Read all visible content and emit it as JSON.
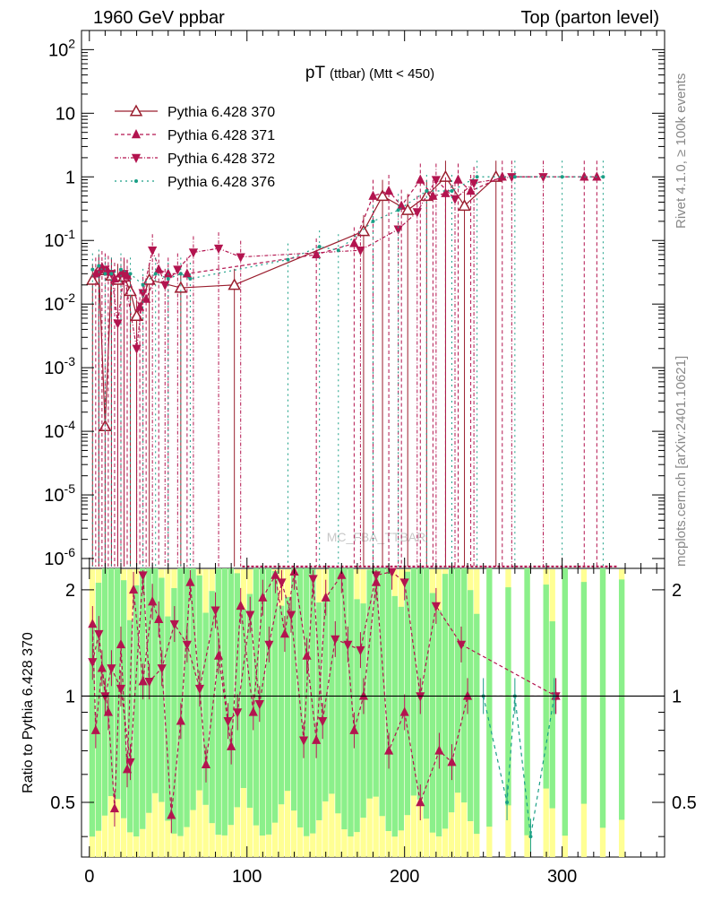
{
  "header": {
    "left_title": "1960 GeV ppbar",
    "right_title": "Top (parton level)"
  },
  "side_labels": {
    "rivet": "Rivet 4.1.0, ≥ 100k events",
    "mcplots": "mcplots.cern.ch [arXiv:2401.10621]"
  },
  "watermark": "MC_FBA_TTBAR",
  "chart_data": [
    {
      "type": "line",
      "panel": "main",
      "title_main": "pT",
      "title_sub": "(ttbar) (Mtt < 450)",
      "yscale": "log",
      "ylim": [
        7e-07,
        200
      ],
      "xlim": [
        -5,
        365
      ],
      "y_ticks": [
        "10^-6",
        "10^-5",
        "10^-4",
        "10^-3",
        "10^-2",
        "10^-1",
        "1",
        "10",
        "10^2"
      ],
      "legend": [
        "Pythia 6.428 370",
        "Pythia 6.428 371",
        "Pythia 6.428 372",
        "Pythia 6.428 376"
      ],
      "series": [
        {
          "name": "Pythia 6.428 370",
          "color": "#9a1e2e",
          "marker": "open-triangle-up",
          "x": [
            2,
            6,
            10,
            14,
            18,
            22,
            26,
            30,
            38,
            58,
            92,
            174,
            186,
            202,
            214,
            226,
            238,
            258
          ],
          "y": [
            0.024,
            0.034,
            0.00012,
            0.028,
            0.024,
            0.027,
            0.016,
            0.0065,
            0.024,
            0.018,
            0.02,
            0.14,
            0.5,
            0.3,
            0.5,
            1.0,
            0.35,
            1.0
          ]
        },
        {
          "name": "Pythia 6.428 371",
          "color": "#b3144f",
          "marker": "filled-triangle-up",
          "x": [
            4,
            8,
            12,
            16,
            20,
            24,
            32,
            36,
            44,
            50,
            62,
            144,
            168,
            180,
            190,
            198,
            210,
            218,
            226,
            234,
            242,
            262,
            314,
            322
          ],
          "y": [
            0.03,
            0.038,
            0.032,
            0.025,
            0.03,
            0.028,
            0.009,
            0.012,
            0.035,
            0.03,
            0.03,
            0.06,
            0.09,
            0.5,
            0.6,
            0.35,
            0.9,
            0.5,
            0.55,
            0.9,
            0.6,
            1.0,
            1.0,
            1.0
          ]
        },
        {
          "name": "Pythia 6.428 372",
          "color": "#b3144f",
          "marker": "filled-triangle-down",
          "x": [
            6,
            10,
            14,
            18,
            22,
            30,
            34,
            40,
            48,
            56,
            66,
            82,
            96,
            172,
            196,
            208,
            220,
            232,
            244,
            268,
            288
          ],
          "y": [
            0.03,
            0.035,
            0.03,
            0.005,
            0.03,
            0.002,
            0.015,
            0.07,
            0.02,
            0.035,
            0.065,
            0.075,
            0.055,
            0.07,
            0.15,
            0.28,
            0.9,
            0.45,
            0.8,
            1.0,
            1.0
          ]
        },
        {
          "name": "Pythia 6.428 376",
          "color": "#1a9f86",
          "marker": "dot",
          "x": [
            2,
            6,
            10,
            14,
            20,
            26,
            34,
            42,
            50,
            58,
            64,
            126,
            146,
            158,
            180,
            196,
            214,
            230,
            246,
            270,
            300,
            326
          ],
          "y": [
            0.035,
            0.04,
            0.03,
            0.03,
            0.035,
            0.03,
            0.02,
            0.03,
            0.025,
            0.03,
            0.025,
            0.05,
            0.08,
            0.07,
            0.2,
            0.3,
            0.6,
            0.6,
            1.0,
            1.0,
            1.0,
            1.0
          ]
        }
      ]
    },
    {
      "type": "line",
      "panel": "ratio",
      "ylabel": "Ratio to Pythia 6.428 370",
      "ylim": [
        0.35,
        2.3
      ],
      "xlim": [
        -5,
        365
      ],
      "y_ticks": [
        "0.5",
        "1",
        "2"
      ],
      "x_ticks": [
        "0",
        "100",
        "200",
        "300"
      ],
      "series": [
        {
          "name": "Pythia 6.428 371 / 370",
          "color": "#b3144f",
          "marker": "filled-triangle-up",
          "x": [
            2,
            4,
            8,
            12,
            16,
            20,
            24,
            28,
            34,
            40,
            44,
            52,
            58,
            64,
            74,
            82,
            90,
            96,
            104,
            110,
            118,
            124,
            130,
            138,
            144,
            150,
            160,
            168,
            174,
            182,
            190,
            200,
            210,
            222,
            230,
            240,
            296
          ],
          "y": [
            1.6,
            0.8,
            1.2,
            0.9,
            0.48,
            1.4,
            0.62,
            2.0,
            1.1,
            1.85,
            1.65,
            0.46,
            0.85,
            2.1,
            0.64,
            1.3,
            0.72,
            1.8,
            0.9,
            1.9,
            2.2,
            1.5,
            2.25,
            1.3,
            0.75,
            1.9,
            2.2,
            0.8,
            1.0,
            2.1,
            0.7,
            0.9,
            0.5,
            0.7,
            0.65,
            1.0,
            1.0
          ]
        },
        {
          "name": "Pythia 6.428 372 / 370",
          "color": "#b3144f",
          "marker": "filled-triangle-down",
          "x": [
            2,
            6,
            10,
            14,
            20,
            26,
            34,
            38,
            46,
            54,
            62,
            70,
            80,
            88,
            94,
            102,
            108,
            114,
            122,
            128,
            136,
            142,
            148,
            156,
            164,
            172,
            182,
            192,
            200,
            210,
            220,
            236,
            296
          ],
          "y": [
            1.25,
            1.5,
            1.0,
            1.2,
            1.05,
            0.65,
            2.2,
            1.1,
            1.2,
            1.6,
            1.4,
            1.05,
            1.75,
            0.85,
            0.9,
            1.7,
            0.95,
            1.4,
            2.1,
            1.7,
            0.75,
            2.15,
            0.85,
            1.45,
            1.4,
            1.35,
            2.2,
            2.25,
            2.1,
            1.0,
            1.8,
            1.4,
            1.0
          ]
        },
        {
          "name": "Pythia 6.428 376 / 370",
          "color": "#1a9f86",
          "marker": "dot",
          "x": [
            250,
            265,
            270,
            280,
            295
          ],
          "y": [
            1.0,
            0.5,
            1.0,
            0.4,
            1.0
          ]
        }
      ]
    }
  ]
}
